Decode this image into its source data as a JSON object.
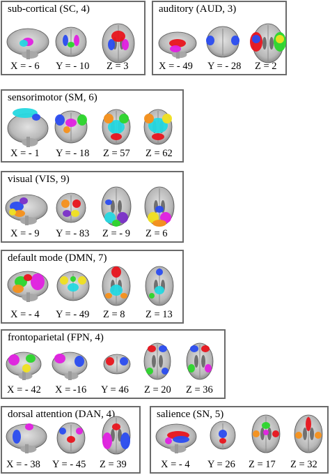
{
  "panels": [
    {
      "id": "sc",
      "title": "sub-cortical (SC, 4)",
      "coords": [
        "X = - 6",
        "Y = - 10",
        "Z = 3"
      ]
    },
    {
      "id": "aud",
      "title": "auditory (AUD, 3)",
      "coords": [
        "X = - 49",
        "Y = - 28",
        "Z = 2"
      ]
    },
    {
      "id": "sm",
      "title": "sensorimotor (SM, 6)",
      "coords": [
        "X = - 1",
        "Y = - 18",
        "Z = 57",
        "Z = 62"
      ]
    },
    {
      "id": "vis",
      "title": "visual (VIS, 9)",
      "coords": [
        "X = - 9",
        "Y = - 83",
        "Z = - 9",
        "Z = 6"
      ]
    },
    {
      "id": "dmn",
      "title": "default mode (DMN, 7)",
      "coords": [
        "X = - 4",
        "Y = - 49",
        "Z = 8",
        "Z = 13"
      ]
    },
    {
      "id": "fpn",
      "title": "frontoparietal (FPN, 4)",
      "coords": [
        "X = - 42",
        "X = -16",
        "Y = 46",
        "Z = 20",
        "Z = 36"
      ]
    },
    {
      "id": "dan",
      "title": "dorsal attention (DAN, 4)",
      "coords": [
        "X = - 38",
        "Y = - 45",
        "Z = 39"
      ]
    },
    {
      "id": "sn",
      "title": "salience (SN, 5)",
      "coords": [
        "X = - 4",
        "Y = 26",
        "Z = 17",
        "Z = 32"
      ]
    }
  ],
  "brain_views": {
    "sc": [
      "sagittal",
      "coronal",
      "axial"
    ],
    "aud": [
      "sagittal",
      "coronal",
      "axial"
    ],
    "sm": [
      "sagittal",
      "coronal",
      "axial",
      "axial"
    ],
    "vis": [
      "sagittal",
      "coronal",
      "axial",
      "axial"
    ],
    "dmn": [
      "sagittal",
      "coronal",
      "axial",
      "axial"
    ],
    "fpn": [
      "sagittal",
      "sagittal",
      "coronal",
      "axial",
      "axial"
    ],
    "dan": [
      "sagittal",
      "coronal",
      "axial"
    ],
    "sn": [
      "sagittal",
      "coronal",
      "axial",
      "axial"
    ]
  },
  "colors": {
    "red": "#e8141c",
    "blue": "#2a4cf0",
    "green": "#2bd62b",
    "magenta": "#e020e0",
    "cyan": "#25d8e0",
    "yellow": "#f0e020",
    "orange": "#f5901a",
    "purple": "#7a2fc8",
    "brain_gray": "#bdbdbd",
    "panel_border": "#6a6a6a"
  }
}
